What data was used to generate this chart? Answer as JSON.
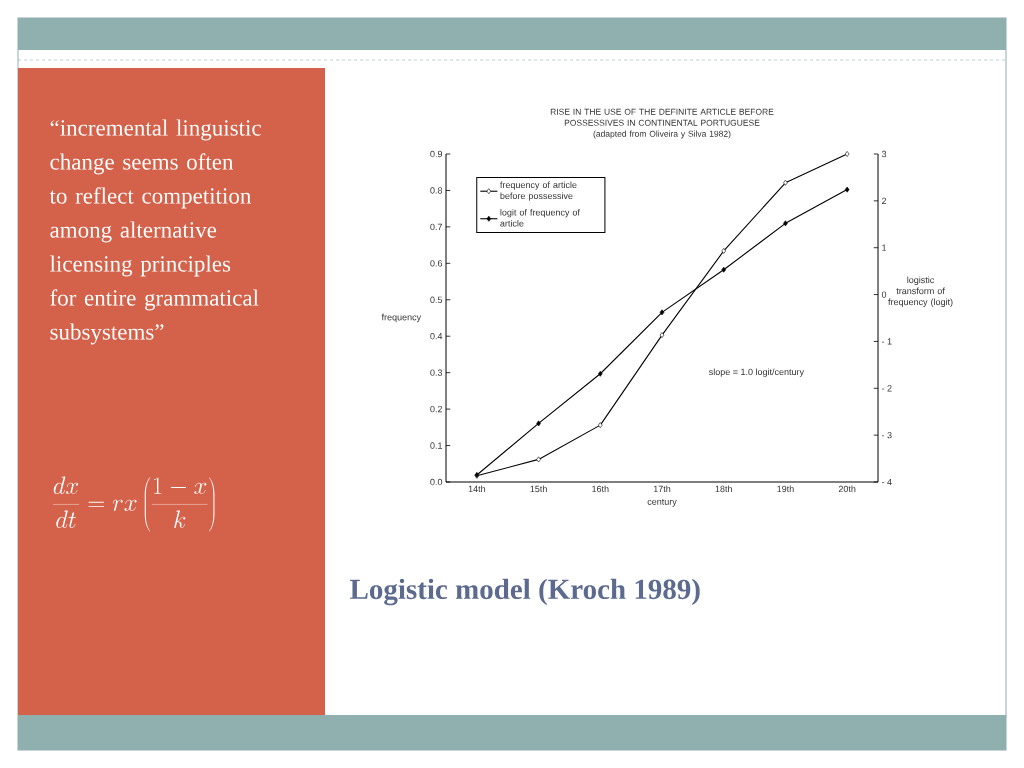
{
  "chart_data": {
    "type": "line",
    "title": "RISE IN THE USE OF THE DEFINITE ARTICLE BEFORE POSSESSIVES IN CONTINENTAL PORTUGUESE",
    "subtitle": "(adapted from Oliveira y Silva 1982)",
    "xlabel": "century",
    "ylabel": "frequency",
    "y2label": "logistic transform of frequency (logit)",
    "categories": [
      "14th",
      "15th",
      "16th",
      "17th",
      "18th",
      "19th",
      "20th"
    ],
    "ylim": [
      0,
      0.9
    ],
    "yticks": [
      {
        "value": 0,
        "label": "0.0"
      },
      0.1,
      0.2,
      0.3,
      0.4,
      0.5,
      0.6,
      0.7,
      0.8,
      0.9
    ],
    "y2lim": [
      -4,
      3
    ],
    "y2ticks": [
      {
        "value": -4,
        "label": "- 4"
      },
      {
        "value": -3,
        "label": "- 3"
      },
      {
        "value": -2,
        "label": "- 2"
      },
      {
        "value": -1,
        "label": "- 1"
      },
      0,
      1,
      2,
      3
    ],
    "series": [
      {
        "name": "frequency of article before possessive",
        "color": "#000000",
        "marker": "diamond",
        "values": [
          0.017,
          0.062,
          0.156,
          0.403,
          0.634,
          0.821,
          0.9
        ]
      },
      {
        "name": "logit of frequency of article",
        "axis": "y2",
        "color": "#000000",
        "marker": "diamond",
        "values": [
          -3.85,
          -2.75,
          -1.69,
          -0.38,
          0.53,
          1.52,
          2.24
        ]
      }
    ],
    "legend": "top left",
    "annotations": [
      "“incremental linguistic change seems often to reflect competition among alternative licensing principles for entire grammatical subsystems”",
      "\\frac{dx}{dt}=rx\\left(\\frac{1-x}{k}\\right)",
      "Logistic model (Kroch 1989)",
      "slope = 1.0 logit/century"
    ]
  }
}
